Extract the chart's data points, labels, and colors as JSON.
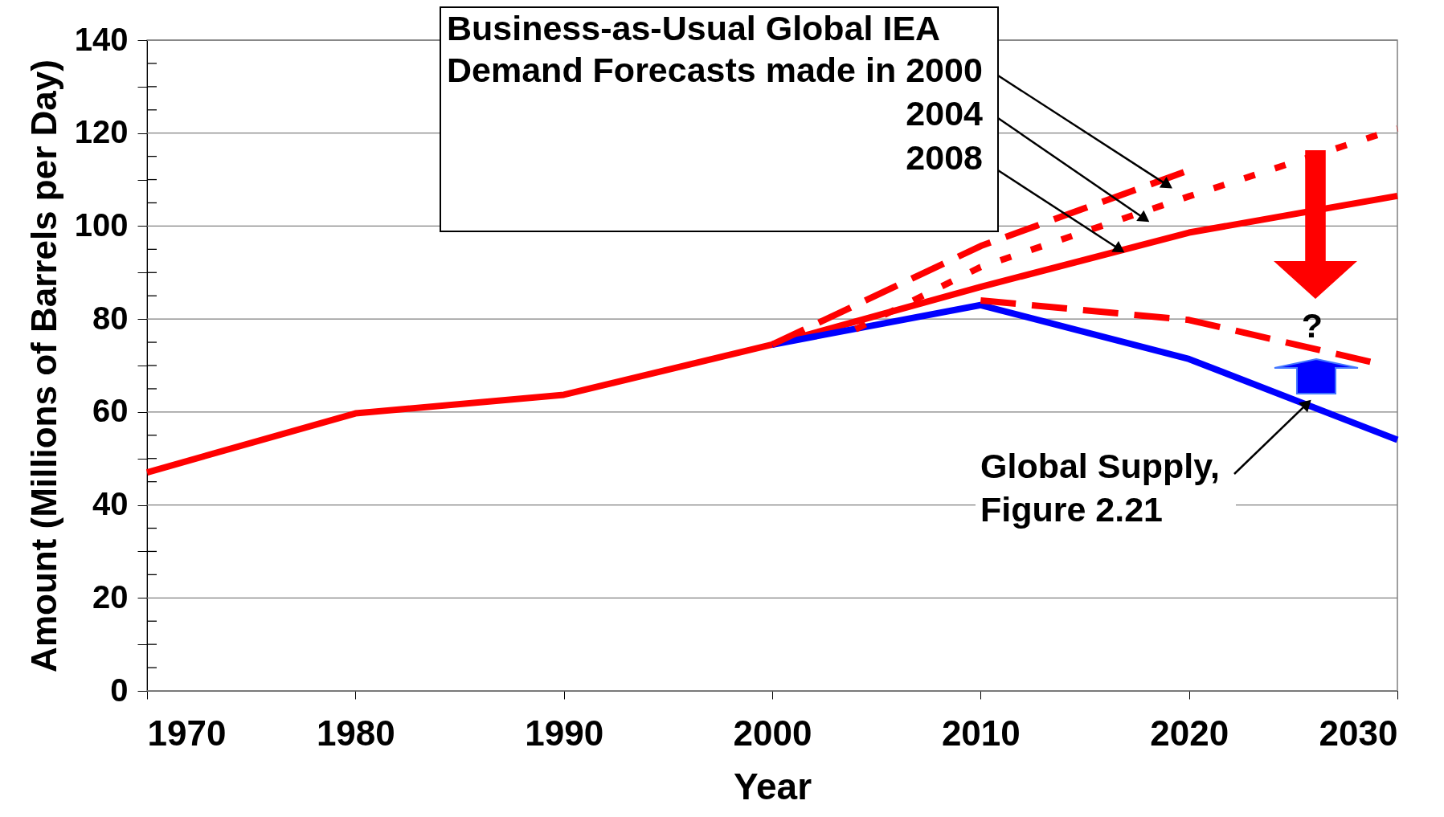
{
  "chart_data": {
    "type": "line",
    "xlabel": "Year",
    "ylabel": "Amount (Millions of Barrels per Day)",
    "xlim": [
      1970,
      2030
    ],
    "xticks": [
      1970,
      1980,
      1990,
      2000,
      2010,
      2020,
      2030
    ],
    "ylim": [
      0,
      140
    ],
    "yticks": [
      0,
      {
        "value": 5,
        "label": null
      },
      {
        "value": 10,
        "label": null
      },
      {
        "value": 15,
        "label": null
      },
      20,
      {
        "value": 25,
        "label": null
      },
      {
        "value": 30,
        "label": null
      },
      {
        "value": 35,
        "label": null
      },
      40,
      {
        "value": 45,
        "label": null
      },
      {
        "value": 50,
        "label": null
      },
      {
        "value": 55,
        "label": null
      },
      60,
      {
        "value": 65,
        "label": null
      },
      {
        "value": 70,
        "label": null
      },
      {
        "value": 75,
        "label": null
      },
      80,
      {
        "value": 85,
        "label": null
      },
      {
        "value": 90,
        "label": null
      },
      {
        "value": 95,
        "label": null
      },
      100,
      {
        "value": 105,
        "label": null
      },
      {
        "value": 110,
        "label": null
      },
      {
        "value": 115,
        "label": null
      },
      120,
      {
        "value": 125,
        "label": null
      },
      {
        "value": 130,
        "label": null
      },
      {
        "value": 135,
        "label": null
      },
      140
    ],
    "grid": "y",
    "marker": "none",
    "series": [
      {
        "color": "#ff0000",
        "line_style": "solid",
        "x": [
          1970,
          1980,
          1990,
          2000,
          2010,
          2020,
          2030
        ],
        "values": [
          47,
          59.7,
          63.7,
          74.5,
          86.9,
          98.6,
          106.5
        ]
      },
      {
        "color": "#0000ff",
        "line_style": "solid",
        "x": [
          2000,
          2010,
          2020,
          2030
        ],
        "values": [
          74.5,
          83,
          71.4,
          54
        ]
      },
      {
        "color": "#ff0000",
        "line_style": "dashed",
        "x": [
          2000,
          2010,
          2020
        ],
        "values": [
          74.5,
          95.7,
          112
        ]
      },
      {
        "color": "#ff0000",
        "line_style": "dotted",
        "x": [
          2004,
          2010,
          2020,
          2030
        ],
        "values": [
          77.8,
          91.2,
          106.4,
          121
        ]
      },
      {
        "color": "#ff0000",
        "line_style": "dashed",
        "x": [
          2010,
          2020,
          2029
        ],
        "values": [
          84,
          79.8,
          70.5
        ]
      }
    ],
    "annotations": [
      "Business-as-Usual Global IEA",
      {
        "text": "Demand Forecasts made in 2000",
        "x": 2018.9,
        "y": 109
      },
      {
        "text": "2004",
        "x": 2017.8,
        "y": 101.8
      },
      {
        "text": "2008",
        "x": 2016.6,
        "y": 95.2
      },
      {
        "text": "Global Supply,\nFigure 2.21",
        "x": 2025.6,
        "y": 61.5
      },
      "?"
    ]
  }
}
